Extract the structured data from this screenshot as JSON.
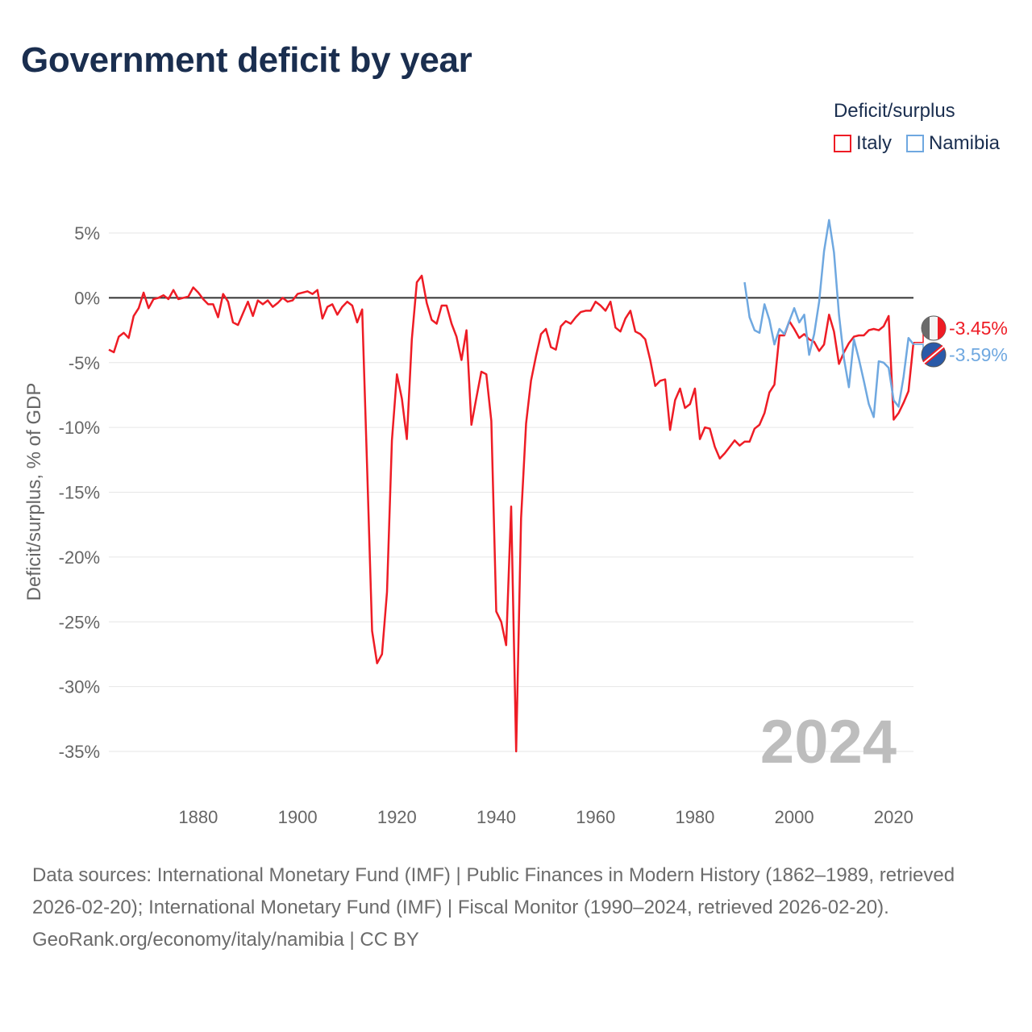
{
  "title": "Government deficit by year",
  "legend": {
    "title": "Deficit/surplus",
    "items": [
      {
        "label": "Italy",
        "color": "#ee1c25"
      },
      {
        "label": "Namibia",
        "color": "#6fa8e0"
      }
    ]
  },
  "footer": {
    "sources": "Data sources: International Monetary Fund (IMF) | Public Finances in Modern History (1862–1989, retrieved 2026-02-20); International Monetary Fund (IMF) | Fiscal Monitor (1990–2024, retrieved 2026-02-20).",
    "link": "GeoRank.org/economy/italy/namibia | CC BY"
  },
  "chart_data": {
    "type": "line",
    "title": "Government deficit by year",
    "xlabel": "",
    "ylabel": "Deficit/surplus, % of GDP",
    "xlim": [
      1862,
      2024
    ],
    "ylim": [
      -35,
      5
    ],
    "xticks": [
      1880,
      1900,
      1920,
      1940,
      1960,
      1980,
      2000,
      2020
    ],
    "yticks": [
      5,
      0,
      -5,
      -10,
      -15,
      -20,
      -25,
      -30,
      -35
    ],
    "ytick_labels": [
      "5%",
      "0%",
      "-5%",
      "-10%",
      "-15%",
      "-20%",
      "-25%",
      "-30%",
      "-35%"
    ],
    "year_label": "2024",
    "series": [
      {
        "name": "Italy",
        "color": "#ee1c25",
        "end_label": "-3.45%",
        "x": [
          1862,
          1863,
          1864,
          1865,
          1866,
          1867,
          1868,
          1869,
          1870,
          1871,
          1872,
          1873,
          1874,
          1875,
          1876,
          1877,
          1878,
          1879,
          1880,
          1881,
          1882,
          1883,
          1884,
          1885,
          1886,
          1887,
          1888,
          1889,
          1890,
          1891,
          1892,
          1893,
          1894,
          1895,
          1896,
          1897,
          1898,
          1899,
          1900,
          1901,
          1902,
          1903,
          1904,
          1905,
          1906,
          1907,
          1908,
          1909,
          1910,
          1911,
          1912,
          1913,
          1914,
          1915,
          1916,
          1917,
          1918,
          1919,
          1920,
          1921,
          1922,
          1923,
          1924,
          1925,
          1926,
          1927,
          1928,
          1929,
          1930,
          1931,
          1932,
          1933,
          1934,
          1935,
          1936,
          1937,
          1938,
          1939,
          1940,
          1941,
          1942,
          1943,
          1944,
          1945,
          1946,
          1947,
          1948,
          1949,
          1950,
          1951,
          1952,
          1953,
          1954,
          1955,
          1956,
          1957,
          1958,
          1959,
          1960,
          1961,
          1962,
          1963,
          1964,
          1965,
          1966,
          1967,
          1968,
          1969,
          1970,
          1971,
          1972,
          1973,
          1974,
          1975,
          1976,
          1977,
          1978,
          1979,
          1980,
          1981,
          1982,
          1983,
          1984,
          1985,
          1986,
          1987,
          1988,
          1989,
          1990,
          1991,
          1992,
          1993,
          1994,
          1995,
          1996,
          1997,
          1998,
          1999,
          2000,
          2001,
          2002,
          2003,
          2004,
          2005,
          2006,
          2007,
          2008,
          2009,
          2010,
          2011,
          2012,
          2013,
          2014,
          2015,
          2016,
          2017,
          2018,
          2019,
          2020,
          2021,
          2022,
          2023,
          2024
        ],
        "y": [
          -4,
          -4.2,
          -3,
          -2.7,
          -3.1,
          -1.4,
          -0.8,
          0.4,
          -0.8,
          -0.1,
          0,
          0.2,
          -0.1,
          0.6,
          -0.1,
          0,
          0.1,
          0.8,
          0.4,
          -0.1,
          -0.5,
          -0.5,
          -1.5,
          0.3,
          -0.3,
          -1.9,
          -2.1,
          -1.2,
          -0.3,
          -1.4,
          -0.2,
          -0.5,
          -0.2,
          -0.7,
          -0.4,
          0,
          -0.3,
          -0.2,
          0.3,
          0.4,
          0.5,
          0.3,
          0.6,
          -1.6,
          -0.7,
          -0.5,
          -1.3,
          -0.7,
          -0.3,
          -0.6,
          -1.9,
          -0.9,
          -13,
          -25.7,
          -28.2,
          -27.5,
          -22.7,
          -11,
          -5.9,
          -7.8,
          -10.9,
          -3.2,
          1.2,
          1.7,
          -0.4,
          -1.7,
          -2,
          -0.6,
          -0.6,
          -2,
          -3,
          -4.8,
          -2.5,
          -9.8,
          -7.7,
          -5.7,
          -5.9,
          -9.5,
          -24.2,
          -25,
          -26.8,
          -16.1,
          -35,
          -17,
          -9.7,
          -6.4,
          -4.5,
          -2.8,
          -2.4,
          -3.8,
          -4,
          -2.2,
          -1.8,
          -2,
          -1.5,
          -1.1,
          -1,
          -1,
          -0.3,
          -0.6,
          -1,
          -0.3,
          -2.3,
          -2.6,
          -1.6,
          -1,
          -2.6,
          -2.8,
          -3.2,
          -4.8,
          -6.8,
          -6.4,
          -6.3,
          -10.2,
          -7.9,
          -7,
          -8.5,
          -8.2,
          -7,
          -10.9,
          -10,
          -10.1,
          -11.5,
          -12.4,
          -12,
          -11.5,
          -11,
          -11.4,
          -11.1,
          -11.1,
          -10.1,
          -9.8,
          -8.9,
          -7.3,
          -6.7,
          -2.9,
          -2.9,
          -1.8,
          -2.4,
          -3.1,
          -2.8,
          -3.2,
          -3.4,
          -4.1,
          -3.6,
          -1.3,
          -2.6,
          -5.1,
          -4.2,
          -3.5,
          -3,
          -2.9,
          -2.9,
          -2.5,
          -2.4,
          -2.5,
          -2.2,
          -1.4,
          -9.4,
          -8.9,
          -8.1,
          -7.2,
          -3.45
        ]
      },
      {
        "name": "Namibia",
        "color": "#6fa8e0",
        "end_label": "-3.59%",
        "x": [
          1990,
          1991,
          1992,
          1993,
          1994,
          1995,
          1996,
          1997,
          1998,
          1999,
          2000,
          2001,
          2002,
          2003,
          2004,
          2005,
          2006,
          2007,
          2008,
          2009,
          2010,
          2011,
          2012,
          2013,
          2014,
          2015,
          2016,
          2017,
          2018,
          2019,
          2020,
          2021,
          2022,
          2023,
          2024
        ],
        "y": [
          1.2,
          -1.5,
          -2.5,
          -2.7,
          -0.5,
          -1.7,
          -3.6,
          -2.4,
          -2.8,
          -1.8,
          -0.8,
          -1.9,
          -1.3,
          -4.4,
          -2.8,
          -0.3,
          3.6,
          6,
          3.5,
          -1.3,
          -4.7,
          -6.9,
          -3.2,
          -4.7,
          -6.4,
          -8.2,
          -9.2,
          -4.9,
          -5,
          -5.4,
          -7.9,
          -8.4,
          -6.1,
          -3.1,
          -3.59
        ]
      }
    ]
  }
}
